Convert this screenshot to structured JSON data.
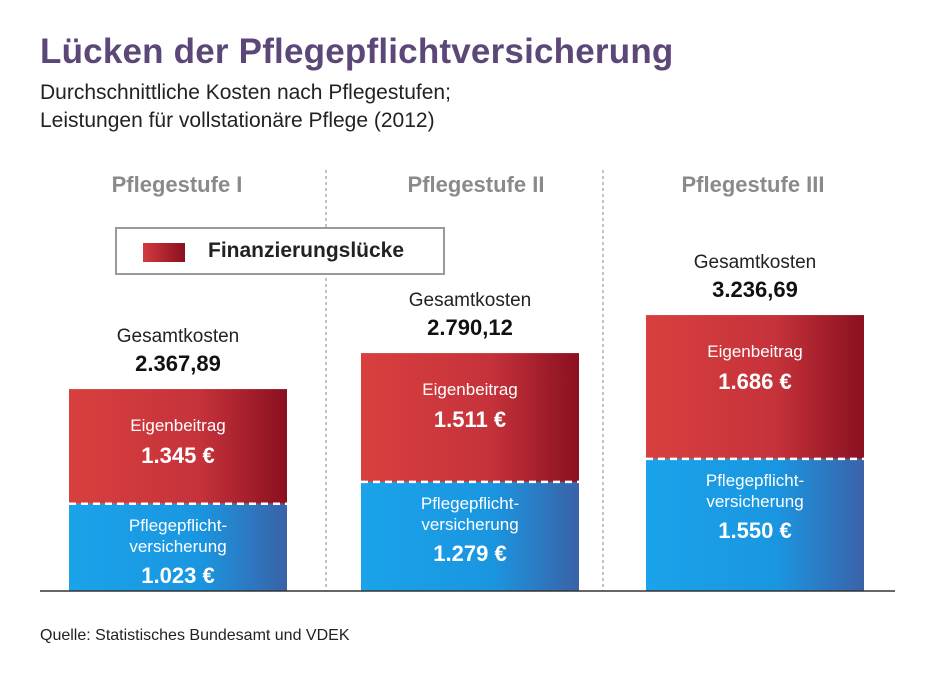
{
  "title": "Lücken der Pflegepflichtversicherung",
  "subtitle_line1": "Durchschnittliche Kosten nach Pflegestufen;",
  "subtitle_line2": "Leistungen für vollstationäre Pflege (2012)",
  "legend_label": "Finanzierungslücke",
  "source": "Quelle: Statistisches Bundesamt und VDEK",
  "colors": {
    "gap_light": "#d8403f",
    "gap_dark": "#8a1020",
    "insurance_light": "#1aa3ea",
    "insurance_dark": "#3a62a8",
    "title": "#5b4778",
    "group_label": "#8a8a8a"
  },
  "chart_data": {
    "type": "bar",
    "stacked": true,
    "categories": [
      "Pflegestufe I",
      "Pflegestufe II",
      "Pflegestufe III"
    ],
    "total_label": "Gesamtkosten",
    "totals": [
      "2.367,89",
      "2.790,12",
      "3.236,69"
    ],
    "total_values": [
      2367.89,
      2790.12,
      3236.69
    ],
    "series": [
      {
        "name": "Pflegepflicht-versicherung",
        "label_lines": [
          "Pflegepflicht-",
          "versicherung"
        ],
        "values": [
          1023,
          1279,
          1550
        ],
        "value_labels": [
          "1.023 €",
          "1.279 €",
          "1.550 €"
        ]
      },
      {
        "name": "Eigenbeitrag",
        "label_lines": [
          "Eigenbeitrag"
        ],
        "values": [
          1345,
          1511,
          1686
        ],
        "value_labels": [
          "1.345 €",
          "1.511 €",
          "1.686 €"
        ]
      }
    ],
    "ylim": [
      0,
      3236.69
    ]
  }
}
